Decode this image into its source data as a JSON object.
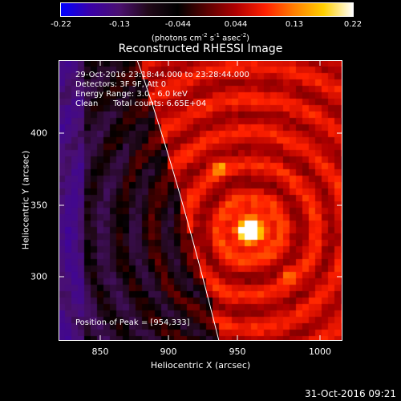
{
  "colorbar": {
    "ticks": [
      "-0.22",
      "-0.13",
      "-0.044",
      "0.044",
      "0.13",
      "0.22"
    ],
    "units_prefix": "(photons cm",
    "units_exp1": "-2",
    "units_mid": " s",
    "units_exp2": "-1",
    "units_mid2": " asec",
    "units_exp3": "-2",
    "units_suffix": ")",
    "colors": [
      "#0000ff",
      "#3a00a8",
      "#4a1070",
      "#200818",
      "#000000",
      "#5a0000",
      "#b00000",
      "#ff2000",
      "#ff8000",
      "#ffd000",
      "#ffffff"
    ]
  },
  "title": "Reconstructed RHESSI Image",
  "info": {
    "time": "29-Oct-2016 23:18:44.000 to 23:28:44.000",
    "detectors": "Detectors: 3F 9F, Att 0",
    "energy": "Energy Range: 3.0 - 6.0 keV",
    "clean_label": "Clean",
    "counts": "Total counts: 6.65E+04",
    "peak": "Position of Peak = [954,333]"
  },
  "axes": {
    "xlabel": "Heliocentric X (arcsec)",
    "ylabel": "Heliocentric Y (arcsec)",
    "xticks": [
      "850",
      "900",
      "950",
      "1000"
    ],
    "yticks": [
      "300",
      "350",
      "400"
    ]
  },
  "footer": "31-Oct-2016 09:21"
}
